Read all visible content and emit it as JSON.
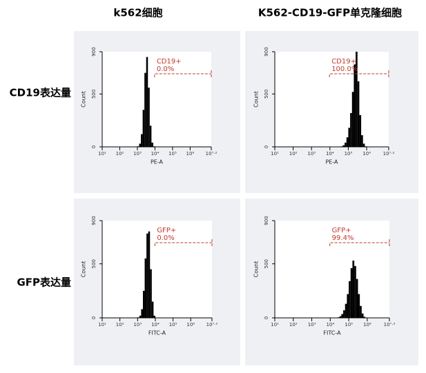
{
  "column_headers": [
    "k562细胞",
    "K562-CD19-GFP单克隆细胞"
  ],
  "row_headers": [
    "CD19表达量",
    "GFP表达量"
  ],
  "chart_data": [
    {
      "type": "histogram",
      "x_label": "PE-A",
      "y_label": "Count",
      "xscale": "log",
      "color": "#000000",
      "xlim": [
        10,
        15848932
      ],
      "xticks": [
        {
          "value": 10,
          "label": "10¹"
        },
        {
          "value": 100,
          "label": "10²"
        },
        {
          "value": 1000,
          "label": "10³"
        },
        {
          "value": 10000,
          "label": "10⁴"
        },
        {
          "value": 100000,
          "label": "10⁵"
        },
        {
          "value": 1000000,
          "label": "10⁶"
        },
        {
          "value": 15848932,
          "label": "10⁷·²"
        }
      ],
      "ylim": [
        0,
        900
      ],
      "yticks": [
        0,
        500,
        900
      ],
      "bins": [
        1000,
        1259,
        1585,
        1995,
        2512,
        3162,
        3981,
        5012,
        6310,
        7943,
        10000
      ],
      "values": [
        5,
        30,
        120,
        350,
        700,
        850,
        560,
        200,
        40,
        5
      ],
      "gate": {
        "name": "CD19+",
        "percent": 0.0,
        "percent_label": "0.0%"
      }
    },
    {
      "type": "histogram",
      "x_label": "PE-A",
      "y_label": "Count",
      "xscale": "log",
      "color": "#000000",
      "xlim": [
        10,
        15848932
      ],
      "xticks": [
        {
          "value": 10,
          "label": "10¹"
        },
        {
          "value": 100,
          "label": "10²"
        },
        {
          "value": 1000,
          "label": "10³"
        },
        {
          "value": 10000,
          "label": "10⁴"
        },
        {
          "value": 100000,
          "label": "10⁵"
        },
        {
          "value": 1000000,
          "label": "10⁶"
        },
        {
          "value": 15848932,
          "label": "10⁷·²"
        }
      ],
      "ylim": [
        0,
        900
      ],
      "yticks": [
        0,
        500,
        900
      ],
      "bins": [
        39811,
        50119,
        63096,
        79433,
        100000,
        125893,
        158489,
        199526,
        251189,
        316228,
        398107,
        501187,
        630957,
        794328,
        1000000
      ],
      "values": [
        5,
        15,
        40,
        90,
        180,
        320,
        520,
        780,
        900,
        620,
        300,
        110,
        30,
        5
      ],
      "gate": {
        "name": "CD19+",
        "percent": 100.0,
        "percent_label": "100.0%"
      }
    },
    {
      "type": "histogram",
      "x_label": "FITC-A",
      "y_label": "Count",
      "xscale": "log",
      "color": "#000000",
      "xlim": [
        10,
        15848932
      ],
      "xticks": [
        {
          "value": 10,
          "label": "10¹"
        },
        {
          "value": 100,
          "label": "10²"
        },
        {
          "value": 1000,
          "label": "10³"
        },
        {
          "value": 10000,
          "label": "10⁴"
        },
        {
          "value": 100000,
          "label": "10⁵"
        },
        {
          "value": 1000000,
          "label": "10⁶"
        },
        {
          "value": 15848932,
          "label": "10⁷·²"
        }
      ],
      "ylim": [
        0,
        900
      ],
      "yticks": [
        0,
        500,
        900
      ],
      "bins": [
        1000,
        1259,
        1585,
        1995,
        2512,
        3162,
        3981,
        5012,
        6310,
        7943,
        10000
      ],
      "values": [
        5,
        20,
        80,
        250,
        550,
        780,
        800,
        450,
        150,
        20
      ],
      "gate": {
        "name": "GFP+",
        "percent": 0.0,
        "percent_label": "0.0%"
      }
    },
    {
      "type": "histogram",
      "x_label": "FITC-A",
      "y_label": "Count",
      "xscale": "log",
      "color": "#000000",
      "xlim": [
        10,
        15848932
      ],
      "xticks": [
        {
          "value": 10,
          "label": "10¹"
        },
        {
          "value": 100,
          "label": "10²"
        },
        {
          "value": 1000,
          "label": "10³"
        },
        {
          "value": 10000,
          "label": "10⁴"
        },
        {
          "value": 100000,
          "label": "10⁵"
        },
        {
          "value": 1000000,
          "label": "10⁶"
        },
        {
          "value": 15848932,
          "label": "10⁷·²"
        }
      ],
      "ylim": [
        0,
        900
      ],
      "yticks": [
        0,
        500,
        900
      ],
      "bins": [
        25119,
        31623,
        39811,
        50119,
        63096,
        79433,
        100000,
        125893,
        158489,
        199526,
        251189,
        316228,
        398107,
        501187,
        630957,
        794328,
        1000000
      ],
      "values": [
        5,
        15,
        35,
        70,
        130,
        220,
        340,
        460,
        530,
        480,
        360,
        220,
        110,
        40,
        10,
        3
      ],
      "gate": {
        "name": "GFP+",
        "percent": 99.4,
        "percent_label": "99.4%"
      }
    }
  ]
}
